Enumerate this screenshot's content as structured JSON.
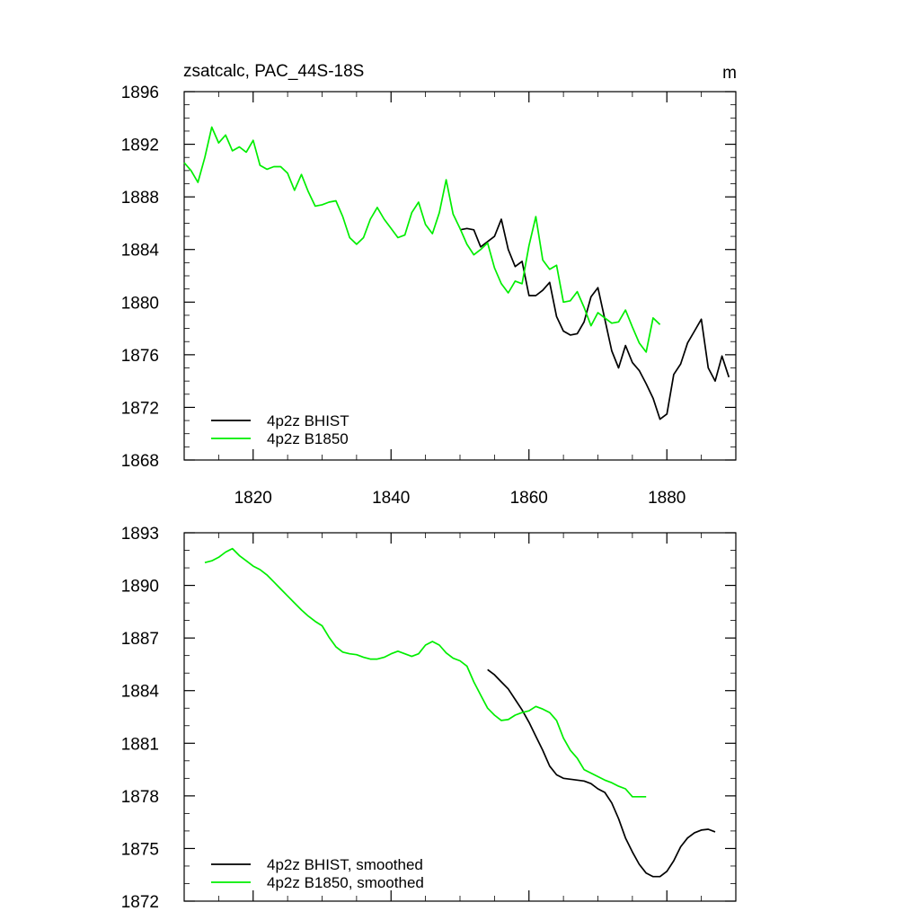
{
  "figure": {
    "title": "zsatcalc, PAC_44S-18S",
    "units": "m"
  },
  "colors": {
    "bhist": "#000000",
    "b1850": "#00ee00"
  },
  "chart_data": [
    {
      "type": "line",
      "name": "raw",
      "xlim": [
        1810,
        1890
      ],
      "ylim": [
        1868,
        1896
      ],
      "xticks": [
        1820,
        1840,
        1860,
        1880
      ],
      "yticks": [
        1868,
        1872,
        1876,
        1880,
        1884,
        1888,
        1892,
        1896
      ],
      "xminor": 5,
      "yminor": 1,
      "show_xtick_labels": true,
      "legend_position": "bottom-left",
      "series": [
        {
          "name": "4p2z BHIST",
          "color_key": "bhist",
          "x": [
            1850,
            1851,
            1852,
            1853,
            1854,
            1855,
            1856,
            1857,
            1858,
            1859,
            1860,
            1861,
            1862,
            1863,
            1864,
            1865,
            1866,
            1867,
            1868,
            1869,
            1870,
            1871,
            1872,
            1873,
            1874,
            1875,
            1876,
            1877,
            1878,
            1879,
            1880,
            1881,
            1882,
            1883,
            1884,
            1885,
            1886,
            1887,
            1888,
            1889
          ],
          "values": [
            1885.5,
            1885.6,
            1885.5,
            1884.2,
            1884.6,
            1885.0,
            1886.3,
            1884.0,
            1882.7,
            1883.1,
            1880.5,
            1880.5,
            1880.9,
            1881.5,
            1878.9,
            1877.8,
            1877.5,
            1877.6,
            1878.5,
            1880.4,
            1881.1,
            1878.7,
            1876.3,
            1875.0,
            1876.7,
            1875.4,
            1874.8,
            1873.8,
            1872.7,
            1871.1,
            1871.5,
            1874.5,
            1875.3,
            1876.9,
            1877.8,
            1878.7,
            1875.0,
            1874.0,
            1875.9,
            1874.3
          ]
        },
        {
          "name": "4p2z B1850",
          "color_key": "b1850",
          "x": [
            1810,
            1811,
            1812,
            1813,
            1814,
            1815,
            1816,
            1817,
            1818,
            1819,
            1820,
            1821,
            1822,
            1823,
            1824,
            1825,
            1826,
            1827,
            1828,
            1829,
            1830,
            1831,
            1832,
            1833,
            1834,
            1835,
            1836,
            1837,
            1838,
            1839,
            1840,
            1841,
            1842,
            1843,
            1844,
            1845,
            1846,
            1847,
            1848,
            1849,
            1850,
            1851,
            1852,
            1853,
            1854,
            1855,
            1856,
            1857,
            1858,
            1859,
            1860,
            1861,
            1862,
            1863,
            1864,
            1865,
            1866,
            1867,
            1868,
            1869,
            1870,
            1871,
            1872,
            1873,
            1874,
            1875,
            1876,
            1877,
            1878,
            1879
          ],
          "values": [
            1890.6,
            1890.0,
            1889.1,
            1891.0,
            1893.3,
            1892.1,
            1892.7,
            1891.5,
            1891.8,
            1891.4,
            1892.3,
            1890.4,
            1890.1,
            1890.3,
            1890.3,
            1889.8,
            1888.5,
            1889.7,
            1888.4,
            1887.3,
            1887.4,
            1887.6,
            1887.7,
            1886.5,
            1884.9,
            1884.4,
            1884.9,
            1886.3,
            1887.2,
            1886.3,
            1885.6,
            1884.9,
            1885.1,
            1886.8,
            1887.6,
            1885.9,
            1885.2,
            1886.8,
            1889.3,
            1886.7,
            1885.6,
            1884.4,
            1883.6,
            1884.0,
            1884.5,
            1882.6,
            1881.4,
            1880.7,
            1881.6,
            1881.4,
            1884.3,
            1886.5,
            1883.2,
            1882.5,
            1882.8,
            1880.0,
            1880.1,
            1880.8,
            1879.6,
            1878.2,
            1879.2,
            1878.8,
            1878.4,
            1878.5,
            1879.4,
            1878.1,
            1876.9,
            1876.2,
            1878.8,
            1878.3
          ]
        }
      ]
    },
    {
      "type": "line",
      "name": "smoothed",
      "xlim": [
        1810,
        1890
      ],
      "ylim": [
        1872,
        1893
      ],
      "xticks": [
        1820,
        1840,
        1860,
        1880
      ],
      "yticks": [
        1872,
        1875,
        1878,
        1881,
        1884,
        1887,
        1890,
        1893
      ],
      "xminor": 5,
      "yminor": 1,
      "show_xtick_labels": false,
      "legend_position": "bottom-left",
      "series": [
        {
          "name": "4p2z BHIST, smoothed",
          "color_key": "bhist",
          "x": [
            1854,
            1855,
            1856,
            1857,
            1858,
            1859,
            1860,
            1861,
            1862,
            1863,
            1864,
            1865,
            1866,
            1867,
            1868,
            1869,
            1870,
            1871,
            1872,
            1873,
            1874,
            1875,
            1876,
            1877,
            1878,
            1879,
            1880,
            1881,
            1882,
            1883,
            1884,
            1885,
            1886,
            1887
          ],
          "values": [
            1885.2,
            1884.9,
            1884.5,
            1884.1,
            1883.5,
            1882.9,
            1882.2,
            1881.4,
            1880.6,
            1879.7,
            1879.2,
            1879.0,
            1878.95,
            1878.9,
            1878.85,
            1878.7,
            1878.4,
            1878.2,
            1877.6,
            1876.7,
            1875.6,
            1874.8,
            1874.1,
            1873.6,
            1873.4,
            1873.4,
            1873.7,
            1874.3,
            1875.1,
            1875.6,
            1875.9,
            1876.05,
            1876.1,
            1875.95
          ]
        },
        {
          "name": "4p2z B1850, smoothed",
          "color_key": "b1850",
          "x": [
            1813,
            1814,
            1815,
            1816,
            1817,
            1818,
            1819,
            1820,
            1821,
            1822,
            1823,
            1824,
            1825,
            1826,
            1827,
            1828,
            1829,
            1830,
            1831,
            1832,
            1833,
            1834,
            1835,
            1836,
            1837,
            1838,
            1839,
            1840,
            1841,
            1842,
            1843,
            1844,
            1845,
            1846,
            1847,
            1848,
            1849,
            1850,
            1851,
            1852,
            1853,
            1854,
            1855,
            1856,
            1857,
            1858,
            1859,
            1860,
            1861,
            1862,
            1863,
            1864,
            1865,
            1866,
            1867,
            1868,
            1869,
            1870,
            1871,
            1872,
            1873,
            1874,
            1875,
            1876,
            1877
          ],
          "values": [
            1891.3,
            1891.4,
            1891.6,
            1891.9,
            1892.1,
            1891.7,
            1891.4,
            1891.1,
            1890.9,
            1890.6,
            1890.2,
            1889.8,
            1889.4,
            1889.0,
            1888.6,
            1888.25,
            1887.95,
            1887.7,
            1887.05,
            1886.5,
            1886.2,
            1886.1,
            1886.05,
            1885.9,
            1885.8,
            1885.8,
            1885.9,
            1886.1,
            1886.25,
            1886.1,
            1885.95,
            1886.1,
            1886.6,
            1886.8,
            1886.6,
            1886.15,
            1885.85,
            1885.7,
            1885.4,
            1884.5,
            1883.75,
            1883.0,
            1882.6,
            1882.3,
            1882.35,
            1882.6,
            1882.75,
            1882.85,
            1883.1,
            1882.95,
            1882.75,
            1882.3,
            1881.3,
            1880.6,
            1880.15,
            1879.5,
            1879.3,
            1879.1,
            1878.9,
            1878.75,
            1878.55,
            1878.4,
            1877.95,
            1877.95,
            1877.95
          ]
        }
      ]
    }
  ]
}
